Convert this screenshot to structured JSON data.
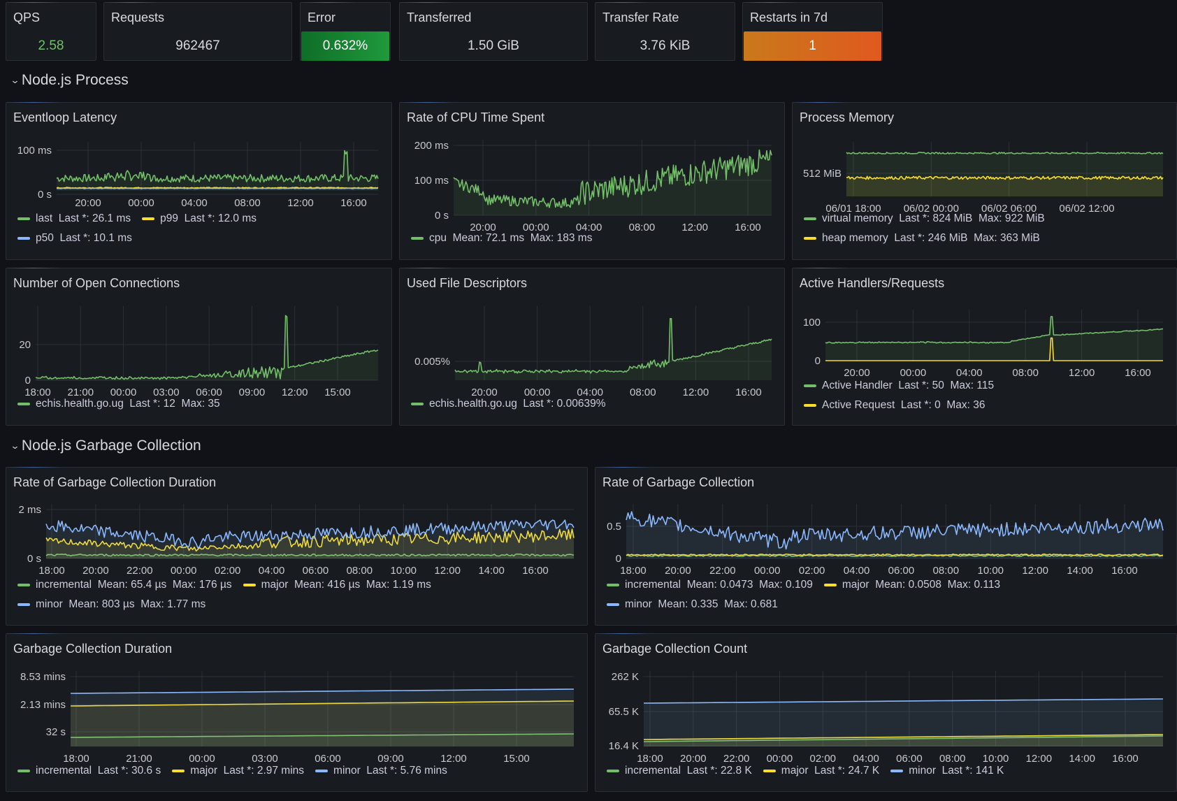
{
  "stats": [
    {
      "title": "QPS",
      "value": "2.58",
      "color": "#73bf69",
      "bg": ""
    },
    {
      "title": "Requests",
      "value": "962467",
      "color": "#d8d9e0",
      "bg": ""
    },
    {
      "title": "Error",
      "value": "0.632%",
      "color": "#ffffff",
      "bg": "#1a8a34"
    },
    {
      "title": "Transferred",
      "value": "1.50 GiB",
      "color": "#d8d9e0",
      "bg": ""
    },
    {
      "title": "Transfer Rate",
      "value": "3.76 KiB",
      "color": "#d8d9e0",
      "bg": ""
    },
    {
      "title": "Restarts in 7d",
      "value": "1",
      "color": "#ffffff",
      "bg": "#d06a1e"
    }
  ],
  "rows": {
    "process": "Node.js Process",
    "gc": "Node.js Garbage Collection"
  },
  "colors": {
    "green": "#73bf69",
    "yellow": "#fade2a",
    "blue": "#8ab8ff"
  },
  "panels": [
    {
      "title": "Eventloop Latency",
      "y_ticks": [
        "100 ms",
        "0 s"
      ],
      "x_ticks": [
        "20:00",
        "00:00",
        "04:00",
        "08:00",
        "12:00",
        "16:00"
      ],
      "legend": [
        [
          {
            "color": "green",
            "text": "last  Last *: 26.1 ms"
          },
          {
            "color": "yellow",
            "text": "p99  Last *: 12.0 ms"
          }
        ],
        [
          {
            "color": "blue",
            "text": "p50  Last *: 10.1 ms"
          }
        ]
      ]
    },
    {
      "title": "Rate of CPU Time Spent",
      "y_ticks": [
        "200 ms",
        "100 ms",
        "0 s"
      ],
      "x_ticks": [
        "20:00",
        "00:00",
        "04:00",
        "08:00",
        "12:00",
        "16:00"
      ],
      "legend": [
        [
          {
            "color": "green",
            "text": "cpu  Mean: 72.1 ms  Max: 183 ms"
          }
        ]
      ]
    },
    {
      "title": "Process Memory",
      "y_ticks": [
        "512 MiB"
      ],
      "x_ticks": [
        "06/01 18:00",
        "06/02 00:00",
        "06/02 06:00",
        "06/02 12:00"
      ],
      "legend": [
        [
          {
            "color": "green",
            "text": "virtual memory  Last *: 824 MiB  Max: 922 MiB"
          }
        ],
        [
          {
            "color": "yellow",
            "text": "heap memory  Last *: 246 MiB  Max: 363 MiB"
          }
        ]
      ]
    },
    {
      "title": "Number of Open Connections",
      "y_ticks": [
        "20",
        "0"
      ],
      "x_ticks": [
        "18:00",
        "21:00",
        "00:00",
        "03:00",
        "06:00",
        "09:00",
        "12:00",
        "15:00"
      ],
      "legend": [
        [
          {
            "color": "green",
            "text": "echis.health.go.ug  Last *: 12  Max: 35"
          }
        ]
      ]
    },
    {
      "title": "Used File Descriptors",
      "y_ticks": [
        "0.005%"
      ],
      "x_ticks": [
        "20:00",
        "00:00",
        "04:00",
        "08:00",
        "12:00",
        "16:00"
      ],
      "legend": [
        [
          {
            "color": "green",
            "text": "echis.health.go.ug  Last *: 0.00639%"
          }
        ]
      ]
    },
    {
      "title": "Active Handlers/Requests",
      "y_ticks": [
        "100",
        "0"
      ],
      "x_ticks": [
        "20:00",
        "00:00",
        "04:00",
        "08:00",
        "12:00",
        "16:00"
      ],
      "legend": [
        [
          {
            "color": "green",
            "text": "Active Handler  Last *: 50  Max: 115"
          }
        ],
        [
          {
            "color": "yellow",
            "text": "Active Request  Last *: 0  Max: 36"
          }
        ]
      ]
    },
    {
      "title": "Rate of Garbage Collection Duration",
      "y_ticks": [
        "2 ms",
        "0 s"
      ],
      "x_ticks": [
        "18:00",
        "20:00",
        "22:00",
        "00:00",
        "02:00",
        "04:00",
        "06:00",
        "08:00",
        "10:00",
        "12:00",
        "14:00",
        "16:00"
      ],
      "legend": [
        [
          {
            "color": "green",
            "text": "incremental  Mean: 65.4 µs  Max: 176 µs"
          },
          {
            "color": "yellow",
            "text": "major  Mean: 416 µs  Max: 1.19 ms"
          }
        ],
        [
          {
            "color": "blue",
            "text": "minor  Mean: 803 µs  Max: 1.77 ms"
          }
        ]
      ]
    },
    {
      "title": "Rate of Garbage Collection",
      "y_ticks": [
        "0.5",
        "0"
      ],
      "x_ticks": [
        "18:00",
        "20:00",
        "22:00",
        "00:00",
        "02:00",
        "04:00",
        "06:00",
        "08:00",
        "10:00",
        "12:00",
        "14:00",
        "16:00"
      ],
      "legend": [
        [
          {
            "color": "green",
            "text": "incremental  Mean: 0.0473  Max: 0.109"
          },
          {
            "color": "yellow",
            "text": "major  Mean: 0.0508  Max: 0.113"
          }
        ],
        [
          {
            "color": "blue",
            "text": "minor  Mean: 0.335  Max: 0.681"
          }
        ]
      ]
    },
    {
      "title": "Garbage Collection Duration",
      "y_ticks": [
        "8.53 mins",
        "2.13 mins",
        "32 s"
      ],
      "x_ticks": [
        "18:00",
        "21:00",
        "00:00",
        "03:00",
        "06:00",
        "09:00",
        "12:00",
        "15:00"
      ],
      "legend": [
        [
          {
            "color": "green",
            "text": "incremental  Last *: 30.6 s"
          },
          {
            "color": "yellow",
            "text": "major  Last *: 2.97 mins"
          },
          {
            "color": "blue",
            "text": "minor  Last *: 5.76 mins"
          }
        ]
      ]
    },
    {
      "title": "Garbage Collection Count",
      "y_ticks": [
        "262 K",
        "65.5 K",
        "16.4 K"
      ],
      "x_ticks": [
        "18:00",
        "20:00",
        "22:00",
        "00:00",
        "02:00",
        "04:00",
        "06:00",
        "08:00",
        "10:00",
        "12:00",
        "14:00",
        "16:00"
      ],
      "legend": [
        [
          {
            "color": "green",
            "text": "incremental  Last *: 22.8 K"
          },
          {
            "color": "yellow",
            "text": "major  Last *: 24.7 K"
          },
          {
            "color": "blue",
            "text": "minor  Last *: 141 K"
          }
        ]
      ]
    }
  ]
}
